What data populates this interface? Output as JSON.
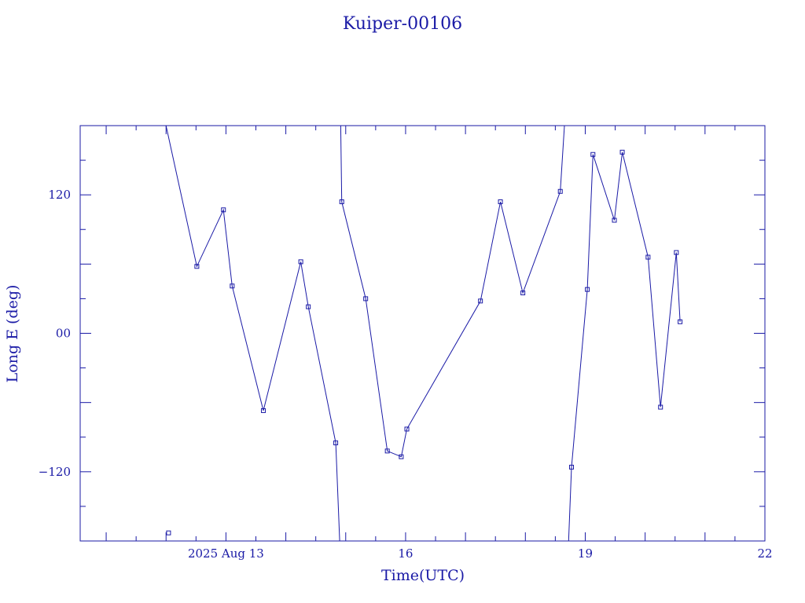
{
  "chart_data": {
    "type": "line",
    "title": "Kuiper-00106",
    "xlabel": "Time(UTC)",
    "ylabel": "Long E (deg)",
    "xlim": [
      "2025-08-10T13:35",
      "2025-08-22T00:00"
    ],
    "ylim": [
      -180,
      180
    ],
    "x_tick_labels": [
      {
        "at": "2025-08-13T00:00",
        "label": "2025 Aug 13"
      },
      {
        "at": "2025-08-16T00:00",
        "label": "16"
      },
      {
        "at": "2025-08-19T00:00",
        "label": "19"
      },
      {
        "at": "2025-08-22T00:00",
        "label": "22"
      }
    ],
    "y_tick_labels": [
      {
        "at": 120,
        "label": "120"
      },
      {
        "at": 0,
        "label": "00"
      },
      {
        "at": -120,
        "label": "−120"
      }
    ],
    "grid": false,
    "line_color": "#1a1aa6",
    "series": [
      {
        "segments": [
          {
            "x": [
              "2025-08-12T00:00",
              "2025-08-12T12:20",
              "2025-08-12T23:00",
              "2025-08-13T02:30",
              "2025-08-13T15:00",
              "2025-08-14T06:00",
              "2025-08-14T09:00",
              "2025-08-14T20:00",
              "2025-08-14T21:35"
            ],
            "y": [
              180,
              58,
              107,
              41,
              -67,
              62,
              23,
              -95,
              -180
            ]
          },
          {
            "x": [
              "2025-08-14T22:00",
              "2025-08-14T22:25",
              "2025-08-15T08:00",
              "2025-08-15T16:40",
              "2025-08-15T22:15",
              "2025-08-16T00:30",
              "2025-08-17T06:00",
              "2025-08-17T14:00",
              "2025-08-17T23:00",
              "2025-08-18T14:00",
              "2025-08-18T15:40"
            ],
            "y": [
              180,
              114,
              30,
              -102,
              -107,
              -83,
              28,
              114,
              35,
              123,
              180
            ]
          },
          {
            "x": [
              "2025-08-18T17:20",
              "2025-08-18T18:30",
              "2025-08-19T00:50",
              "2025-08-19T03:05",
              "2025-08-19T11:40",
              "2025-08-19T14:50",
              "2025-08-20T01:10",
              "2025-08-20T06:10",
              "2025-08-20T12:30",
              "2025-08-20T14:00"
            ],
            "y": [
              -180,
              -116,
              38,
              155,
              98,
              157,
              66,
              -64,
              70,
              10
            ]
          }
        ],
        "markers": {
          "x": [
            "2025-08-12T01:00",
            "2025-08-12T12:20",
            "2025-08-12T23:00",
            "2025-08-13T02:30",
            "2025-08-13T15:00",
            "2025-08-14T06:00",
            "2025-08-14T09:00",
            "2025-08-14T20:00",
            "2025-08-14T22:25",
            "2025-08-15T08:00",
            "2025-08-15T16:40",
            "2025-08-15T22:15",
            "2025-08-16T00:30",
            "2025-08-17T06:00",
            "2025-08-17T14:00",
            "2025-08-17T23:00",
            "2025-08-18T14:00",
            "2025-08-18T18:30",
            "2025-08-19T00:50",
            "2025-08-19T03:05",
            "2025-08-19T11:40",
            "2025-08-19T14:50",
            "2025-08-20T01:10",
            "2025-08-20T06:10",
            "2025-08-20T12:30",
            "2025-08-20T14:00"
          ],
          "y": [
            -173,
            58,
            107,
            41,
            -67,
            62,
            23,
            -95,
            114,
            30,
            -102,
            -107,
            -83,
            28,
            114,
            35,
            123,
            -116,
            38,
            155,
            98,
            157,
            66,
            -64,
            70,
            10
          ]
        }
      }
    ]
  }
}
